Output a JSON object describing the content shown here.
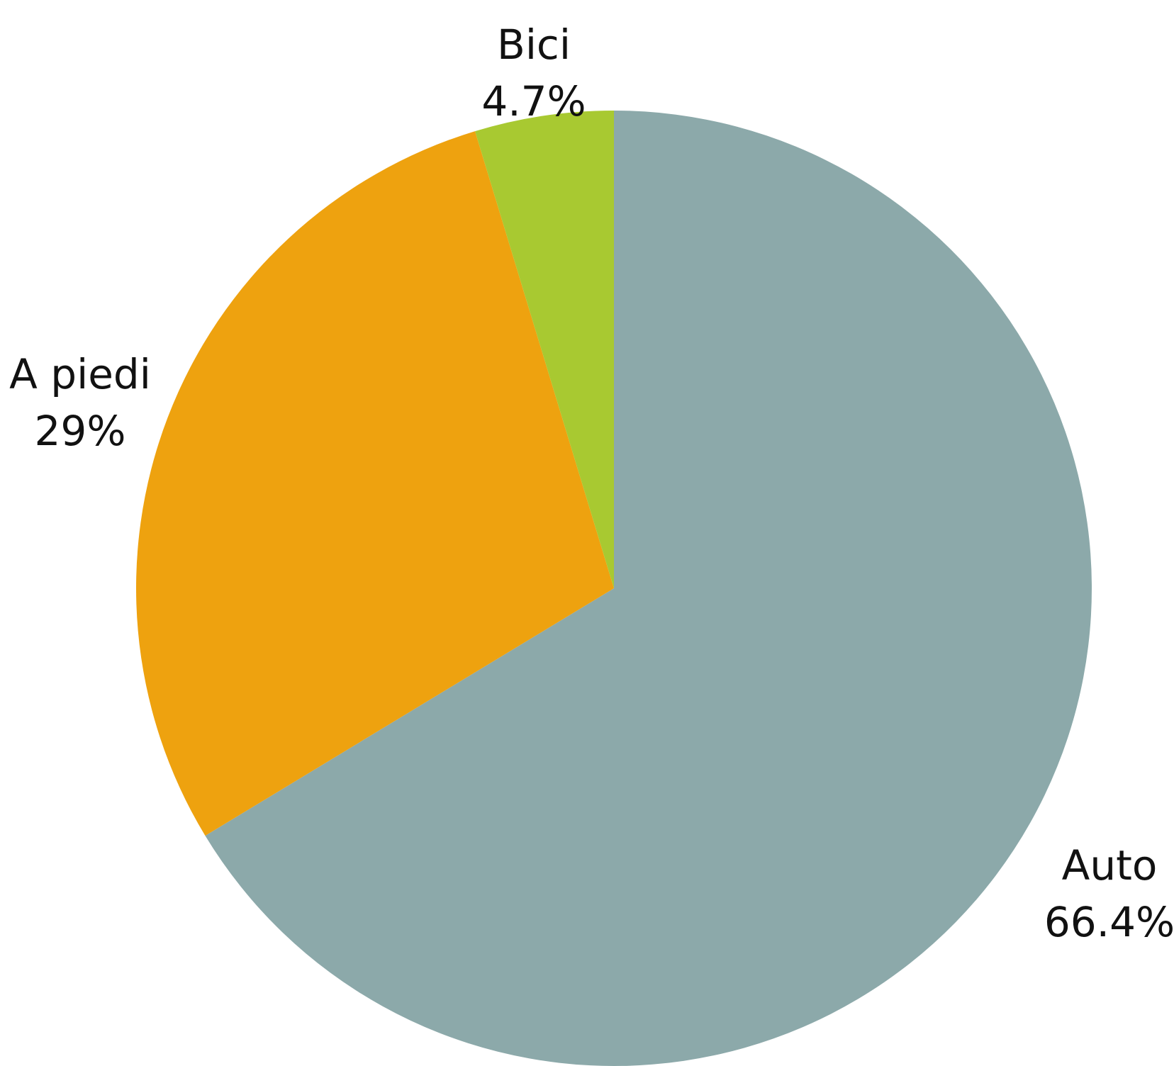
{
  "chart_data": {
    "type": "pie",
    "title": "",
    "slices": [
      {
        "name": "Auto",
        "value": 66.4,
        "label": "66.4%",
        "color": "#8ca9aa"
      },
      {
        "name": "A piedi",
        "value": 29,
        "label": "29%",
        "color": "#eea20f"
      },
      {
        "name": "Bici",
        "value": 4.7,
        "label": "4.7%",
        "color": "#a8c931"
      }
    ],
    "start_angle": "12 o'clock",
    "direction": "clockwise",
    "legend": "none"
  }
}
